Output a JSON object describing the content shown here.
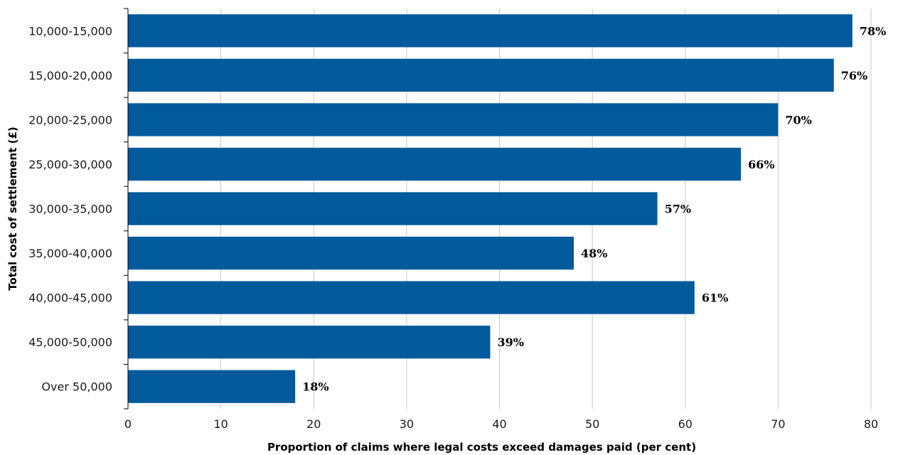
{
  "chart_data": {
    "type": "bar",
    "orientation": "horizontal",
    "categories": [
      "10,000-15,000",
      "15,000-20,000",
      "20,000-25,000",
      "25,000-30,000",
      "30,000-35,000",
      "35,000-40,000",
      "40,000-45,000",
      "45,000-50,000",
      "Over 50,000"
    ],
    "values": [
      78,
      76,
      70,
      66,
      57,
      48,
      61,
      39,
      18
    ],
    "value_labels": [
      "78%",
      "76%",
      "70%",
      "66%",
      "57%",
      "48%",
      "61%",
      "39%",
      "18%"
    ],
    "xlabel": "Proportion of claims where legal costs exceed damages paid (per cent)",
    "ylabel": "Total cost of settlement (£)",
    "xlim": [
      0,
      80
    ],
    "xticks": [
      0,
      10,
      20,
      30,
      40,
      50,
      60,
      70,
      80
    ],
    "xtick_labels": [
      "0",
      "10",
      "20",
      "30",
      "40",
      "50",
      "60",
      "70",
      "80"
    ],
    "grid": "vertical",
    "legend": "none",
    "bar_color": "#005a9c"
  }
}
